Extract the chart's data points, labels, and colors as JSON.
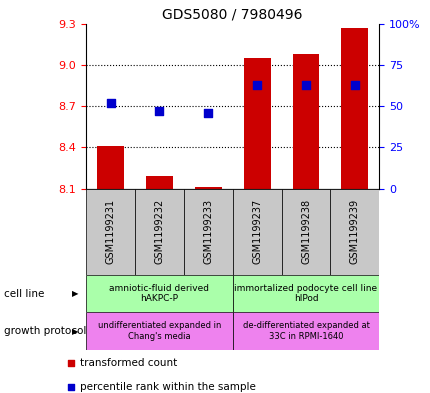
{
  "title": "GDS5080 / 7980496",
  "samples": [
    "GSM1199231",
    "GSM1199232",
    "GSM1199233",
    "GSM1199237",
    "GSM1199238",
    "GSM1199239"
  ],
  "transformed_count": [
    8.41,
    8.19,
    8.11,
    9.05,
    9.08,
    9.27
  ],
  "percentile_rank": [
    52,
    47,
    46,
    63,
    63,
    63
  ],
  "ylim_left": [
    8.1,
    9.3
  ],
  "ylim_right": [
    0,
    100
  ],
  "yticks_left": [
    8.1,
    8.4,
    8.7,
    9.0,
    9.3
  ],
  "yticks_right": [
    0,
    25,
    50,
    75,
    100
  ],
  "ytick_labels_right": [
    "0",
    "25",
    "50",
    "75",
    "100%"
  ],
  "bar_color": "#cc0000",
  "dot_color": "#0000cc",
  "bar_width": 0.55,
  "dot_size": 35,
  "cell_line_groups": [
    {
      "label": "amniotic-fluid derived\nhAKPC-P",
      "start": 0,
      "end": 3,
      "color": "#aaffaa"
    },
    {
      "label": "immortalized podocyte cell line\nhIPod",
      "start": 3,
      "end": 6,
      "color": "#aaffaa"
    }
  ],
  "growth_protocol_groups": [
    {
      "label": "undifferentiated expanded in\nChang's media",
      "start": 0,
      "end": 3,
      "color": "#ee82ee"
    },
    {
      "label": "de-differentiated expanded at\n33C in RPMI-1640",
      "start": 3,
      "end": 6,
      "color": "#ee82ee"
    }
  ],
  "legend_items": [
    {
      "label": "transformed count",
      "color": "#cc0000"
    },
    {
      "label": "percentile rank within the sample",
      "color": "#0000cc"
    }
  ],
  "tick_area_color": "#c8c8c8",
  "sample_label_fontsize": 7,
  "annotation_fontsize": 6.5
}
